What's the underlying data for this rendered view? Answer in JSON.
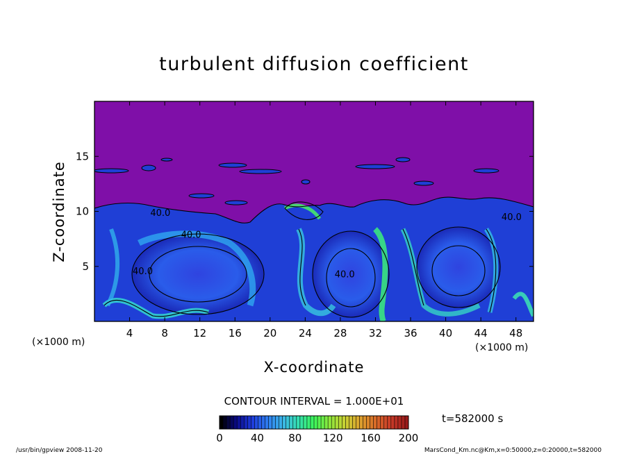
{
  "chart_data": {
    "type": "heatmap",
    "title": "turbulent diffusion coefficient",
    "xlabel": "X-coordinate",
    "ylabel": "Z-coordinate",
    "x_unit": "(×1000 m)",
    "z_unit": "(×1000 m)",
    "xlim": [
      0,
      50
    ],
    "ylim": [
      0,
      20
    ],
    "x_ticks": [
      4,
      8,
      12,
      16,
      20,
      24,
      28,
      32,
      36,
      40,
      44,
      48
    ],
    "y_ticks": [
      5,
      10,
      15
    ],
    "contour_interval": "CONTOUR INTERVAL = 1.000E+01",
    "contour_labels": [
      {
        "x": 7.5,
        "z": 9.6,
        "text": "40.0"
      },
      {
        "x": 11.0,
        "z": 7.6,
        "text": "40.0"
      },
      {
        "x": 28.5,
        "z": 4.0,
        "text": "40.0"
      },
      {
        "x": 47.5,
        "z": 9.2,
        "text": "40.0"
      },
      {
        "x": 5.5,
        "z": 4.3,
        "text": "40.0"
      }
    ],
    "colorbar": {
      "range": [
        0,
        200
      ],
      "ticks": [
        0,
        40,
        80,
        120,
        160,
        200
      ],
      "colors": [
        "#000000",
        "#0a0a8a",
        "#1e3cdc",
        "#2f7df0",
        "#3bb6e6",
        "#35e0b0",
        "#3cf55a",
        "#8ee83c",
        "#c9d034",
        "#dca12e",
        "#d86a28",
        "#c83a28",
        "#9a1a1a"
      ]
    },
    "background_color": "#7f0fa8",
    "time": "t=582000 s"
  },
  "footer": {
    "left": "/usr/bin/gpview   2008-11-20",
    "right": "MarsCond_Km.nc@Km,x=0:50000,z=0:20000,t=582000"
  }
}
